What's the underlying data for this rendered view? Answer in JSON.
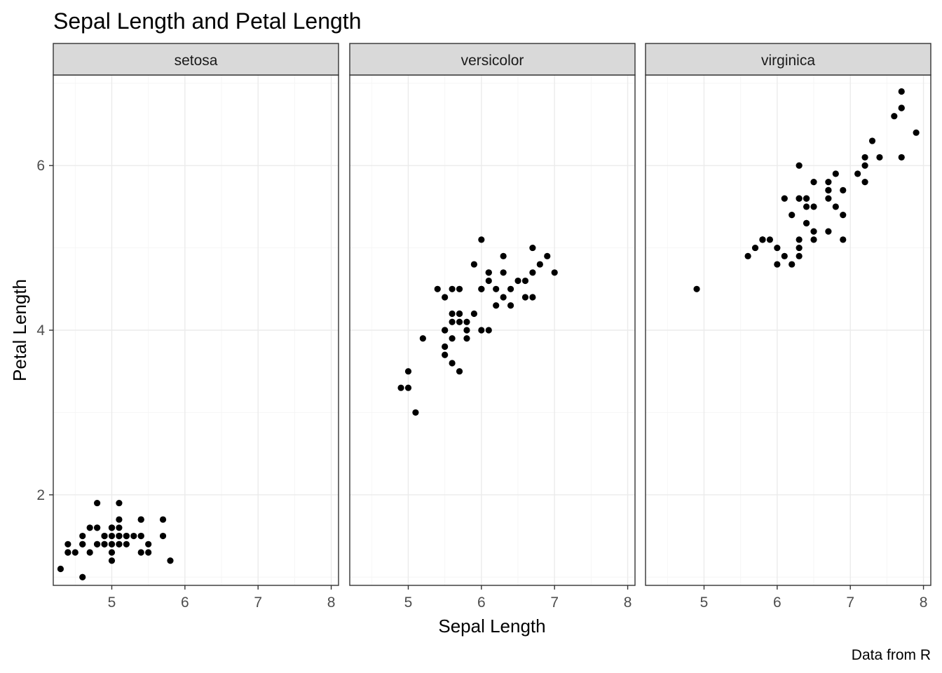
{
  "chart_data": {
    "type": "scatter",
    "title": "Sepal Length and Petal Length",
    "xlabel": "Sepal Length",
    "ylabel": "Petal Length",
    "caption": "Data from R",
    "facet_layout": "1 row, 3 columns, shared axes",
    "xlim": [
      4.2,
      8.1
    ],
    "ylim": [
      0.9,
      7.1
    ],
    "x_ticks": [
      5,
      6,
      7,
      8
    ],
    "y_ticks": [
      2,
      4,
      6
    ],
    "grid": true,
    "point_color": "#000000",
    "strip_color": "#d9d9d9",
    "panels": [
      {
        "label": "setosa",
        "points": [
          [
            5.1,
            1.4
          ],
          [
            4.9,
            1.4
          ],
          [
            4.7,
            1.3
          ],
          [
            4.6,
            1.5
          ],
          [
            5.0,
            1.4
          ],
          [
            5.4,
            1.7
          ],
          [
            4.6,
            1.4
          ],
          [
            5.0,
            1.5
          ],
          [
            4.4,
            1.4
          ],
          [
            4.9,
            1.5
          ],
          [
            5.4,
            1.5
          ],
          [
            4.8,
            1.6
          ],
          [
            4.8,
            1.4
          ],
          [
            4.3,
            1.1
          ],
          [
            5.8,
            1.2
          ],
          [
            5.7,
            1.5
          ],
          [
            5.4,
            1.3
          ],
          [
            5.1,
            1.4
          ],
          [
            5.7,
            1.7
          ],
          [
            5.1,
            1.5
          ],
          [
            5.4,
            1.7
          ],
          [
            5.1,
            1.5
          ],
          [
            4.6,
            1.0
          ],
          [
            5.1,
            1.7
          ],
          [
            4.8,
            1.9
          ],
          [
            5.0,
            1.6
          ],
          [
            5.0,
            1.6
          ],
          [
            5.2,
            1.5
          ],
          [
            5.2,
            1.4
          ],
          [
            4.7,
            1.6
          ],
          [
            4.8,
            1.6
          ],
          [
            5.4,
            1.5
          ],
          [
            5.2,
            1.5
          ],
          [
            5.5,
            1.4
          ],
          [
            4.9,
            1.5
          ],
          [
            5.0,
            1.2
          ],
          [
            5.5,
            1.3
          ],
          [
            4.9,
            1.4
          ],
          [
            4.4,
            1.3
          ],
          [
            5.1,
            1.5
          ],
          [
            5.0,
            1.3
          ],
          [
            4.5,
            1.3
          ],
          [
            4.4,
            1.3
          ],
          [
            5.0,
            1.6
          ],
          [
            5.1,
            1.9
          ],
          [
            4.8,
            1.4
          ],
          [
            5.1,
            1.6
          ],
          [
            4.6,
            1.4
          ],
          [
            5.3,
            1.5
          ],
          [
            5.0,
            1.4
          ]
        ]
      },
      {
        "label": "versicolor",
        "points": [
          [
            7.0,
            4.7
          ],
          [
            6.4,
            4.5
          ],
          [
            6.9,
            4.9
          ],
          [
            5.5,
            4.0
          ],
          [
            6.5,
            4.6
          ],
          [
            5.7,
            4.5
          ],
          [
            6.3,
            4.7
          ],
          [
            4.9,
            3.3
          ],
          [
            6.6,
            4.6
          ],
          [
            5.2,
            3.9
          ],
          [
            5.0,
            3.5
          ],
          [
            5.9,
            4.2
          ],
          [
            6.0,
            4.0
          ],
          [
            6.1,
            4.7
          ],
          [
            5.6,
            3.6
          ],
          [
            6.7,
            4.4
          ],
          [
            5.6,
            4.5
          ],
          [
            5.8,
            4.1
          ],
          [
            6.2,
            4.5
          ],
          [
            5.6,
            3.9
          ],
          [
            5.9,
            4.8
          ],
          [
            6.1,
            4.0
          ],
          [
            6.3,
            4.9
          ],
          [
            6.1,
            4.7
          ],
          [
            6.4,
            4.3
          ],
          [
            6.6,
            4.4
          ],
          [
            6.8,
            4.8
          ],
          [
            6.7,
            5.0
          ],
          [
            6.0,
            4.5
          ],
          [
            5.7,
            3.5
          ],
          [
            5.5,
            3.8
          ],
          [
            5.5,
            3.7
          ],
          [
            5.8,
            3.9
          ],
          [
            6.0,
            5.1
          ],
          [
            5.4,
            4.5
          ],
          [
            6.0,
            4.5
          ],
          [
            6.7,
            4.7
          ],
          [
            6.3,
            4.4
          ],
          [
            5.6,
            4.1
          ],
          [
            5.5,
            4.0
          ],
          [
            5.5,
            4.4
          ],
          [
            6.1,
            4.6
          ],
          [
            5.8,
            4.0
          ],
          [
            5.0,
            3.3
          ],
          [
            5.6,
            4.2
          ],
          [
            5.7,
            4.2
          ],
          [
            5.7,
            4.2
          ],
          [
            6.2,
            4.3
          ],
          [
            5.1,
            3.0
          ],
          [
            5.7,
            4.1
          ]
        ]
      },
      {
        "label": "virginica",
        "points": [
          [
            6.3,
            6.0
          ],
          [
            5.8,
            5.1
          ],
          [
            7.1,
            5.9
          ],
          [
            6.3,
            5.6
          ],
          [
            6.5,
            5.8
          ],
          [
            7.6,
            6.6
          ],
          [
            4.9,
            4.5
          ],
          [
            7.3,
            6.3
          ],
          [
            6.7,
            5.8
          ],
          [
            7.2,
            6.1
          ],
          [
            6.5,
            5.1
          ],
          [
            6.4,
            5.3
          ],
          [
            6.8,
            5.5
          ],
          [
            5.7,
            5.0
          ],
          [
            5.8,
            5.1
          ],
          [
            6.4,
            5.3
          ],
          [
            6.5,
            5.5
          ],
          [
            7.7,
            6.7
          ],
          [
            7.7,
            6.9
          ],
          [
            6.0,
            5.0
          ],
          [
            6.9,
            5.7
          ],
          [
            5.6,
            4.9
          ],
          [
            7.7,
            6.7
          ],
          [
            6.3,
            4.9
          ],
          [
            6.7,
            5.7
          ],
          [
            7.2,
            6.0
          ],
          [
            6.2,
            4.8
          ],
          [
            6.1,
            4.9
          ],
          [
            6.4,
            5.6
          ],
          [
            7.2,
            5.8
          ],
          [
            7.4,
            6.1
          ],
          [
            7.9,
            6.4
          ],
          [
            6.4,
            5.6
          ],
          [
            6.3,
            5.1
          ],
          [
            6.1,
            5.6
          ],
          [
            7.7,
            6.1
          ],
          [
            6.3,
            5.6
          ],
          [
            6.4,
            5.5
          ],
          [
            6.0,
            4.8
          ],
          [
            6.9,
            5.4
          ],
          [
            6.7,
            5.6
          ],
          [
            6.9,
            5.1
          ],
          [
            5.8,
            5.1
          ],
          [
            6.8,
            5.9
          ],
          [
            6.7,
            5.7
          ],
          [
            6.7,
            5.2
          ],
          [
            6.3,
            5.0
          ],
          [
            6.5,
            5.2
          ],
          [
            6.2,
            5.4
          ],
          [
            5.9,
            5.1
          ]
        ]
      }
    ]
  }
}
